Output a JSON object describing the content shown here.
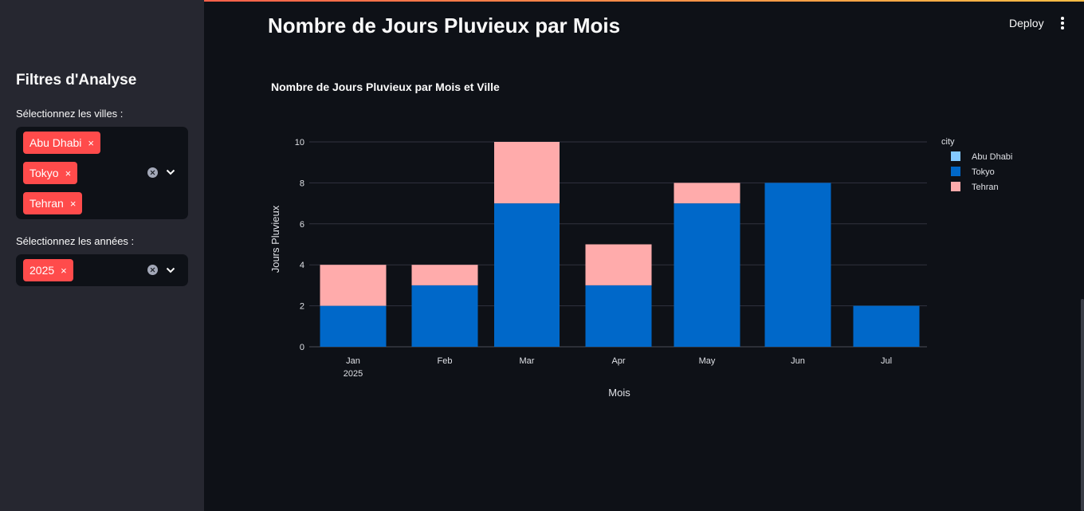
{
  "app": {
    "title": "Nombre de Jours Pluvieux par Mois",
    "deploy_label": "Deploy"
  },
  "sidebar": {
    "title": "Filtres d'Analyse",
    "cities_label": "Sélectionnez les villes :",
    "cities": [
      "Abu Dhabi",
      "Tokyo",
      "Tehran"
    ],
    "years_label": "Sélectionnez les années :",
    "years": [
      "2025"
    ],
    "remove_glyph": "×"
  },
  "colors": {
    "accent": "#ff4b4b",
    "abu_dhabi": "#83c9ff",
    "tokyo": "#0068c9",
    "tehran": "#ffabab"
  },
  "chart_data": {
    "type": "bar",
    "stacked": true,
    "title": "Nombre de Jours Pluvieux par Mois et Ville",
    "xlabel": "Mois",
    "ylabel": "Jours Pluvieux",
    "categories": [
      "Jan",
      "Feb",
      "Mar",
      "Apr",
      "May",
      "Jun",
      "Jul"
    ],
    "x_year_label": "2025",
    "ylim": [
      0,
      10
    ],
    "yticks": [
      0,
      2,
      4,
      6,
      8,
      10
    ],
    "grid": true,
    "legend_title": "city",
    "legend_position": "right",
    "series": [
      {
        "name": "Abu Dhabi",
        "color": "#83c9ff",
        "values": [
          0,
          0,
          0,
          0,
          0,
          0,
          0
        ]
      },
      {
        "name": "Tokyo",
        "color": "#0068c9",
        "values": [
          2,
          3,
          7,
          3,
          7,
          8,
          2
        ]
      },
      {
        "name": "Tehran",
        "color": "#ffabab",
        "values": [
          2,
          1,
          3,
          2,
          1,
          0,
          0
        ]
      }
    ]
  }
}
